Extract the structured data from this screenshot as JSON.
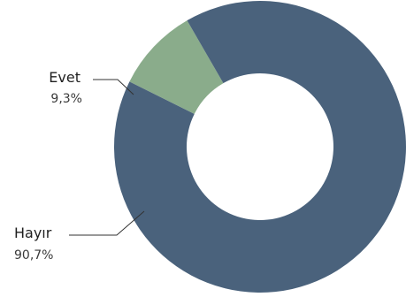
{
  "chart_data": {
    "type": "pie",
    "variant": "donut",
    "categories": [
      "Evet",
      "Hayır"
    ],
    "values": [
      9.3,
      90.7
    ],
    "value_labels": [
      "9,3%",
      "90,7%"
    ],
    "colors": [
      "#8aac8b",
      "#4a627c"
    ],
    "start_angle_deg": -30,
    "direction": "counterclockwise",
    "legend": "none"
  }
}
